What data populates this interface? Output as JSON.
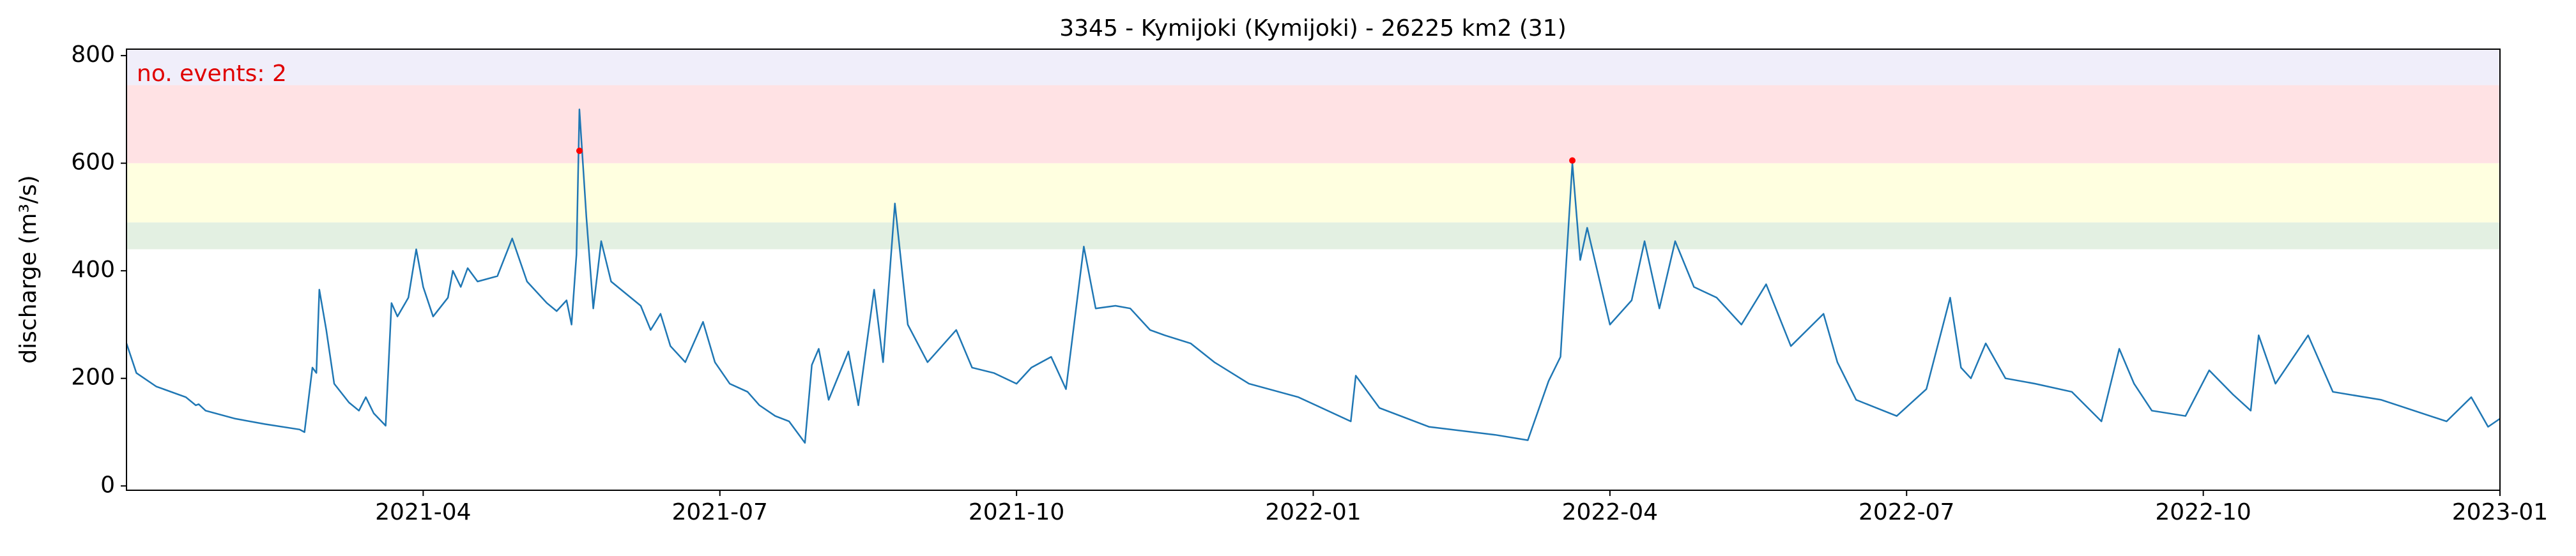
{
  "chart_data": {
    "type": "line",
    "title": "3345 - Kymijoki (Kymijoki) - 26225 km2 (31)",
    "y_label": "discharge (m³/s)",
    "annotation": "no. events: 2",
    "annotation_color": "#e00000",
    "xlim": [
      0,
      24
    ],
    "xticks": [
      {
        "value": 3,
        "label": "2021-04"
      },
      {
        "value": 6,
        "label": "2021-07"
      },
      {
        "value": 9,
        "label": "2021-10"
      },
      {
        "value": 12,
        "label": "2022-01"
      },
      {
        "value": 15,
        "label": "2022-04"
      },
      {
        "value": 18,
        "label": "2022-07"
      },
      {
        "value": 21,
        "label": "2022-10"
      },
      {
        "value": 24,
        "label": "2023-01"
      }
    ],
    "ylim": [
      -8,
      812
    ],
    "yticks": [
      0,
      200,
      400,
      600,
      800
    ],
    "band_edges": [
      440,
      490,
      600,
      745
    ],
    "band_colors": [
      "#e3f0e2",
      "#ffffe0",
      "#ffe2e4",
      "#f0eefa"
    ],
    "series": [
      {
        "color": "#1f77b4",
        "x": [
          0,
          0.1,
          0.3,
          0.6,
          0.7,
          0.73,
          0.8,
          1.1,
          1.4,
          1.75,
          1.8,
          1.88,
          1.92,
          1.95,
          2.02,
          2.1,
          2.25,
          2.35,
          2.42,
          2.5,
          2.62,
          2.68,
          2.74,
          2.85,
          2.93,
          3.0,
          3.1,
          3.25,
          3.3,
          3.38,
          3.45,
          3.55,
          3.75,
          3.9,
          4.05,
          4.25,
          4.35,
          4.45,
          4.5,
          4.55,
          4.58,
          4.65,
          4.72,
          4.8,
          4.9,
          5.2,
          5.3,
          5.4,
          5.5,
          5.65,
          5.83,
          5.95,
          6.1,
          6.28,
          6.4,
          6.56,
          6.7,
          6.86,
          6.93,
          7.0,
          7.1,
          7.3,
          7.4,
          7.56,
          7.65,
          7.77,
          7.9,
          8.1,
          8.39,
          8.55,
          8.77,
          9.0,
          9.15,
          9.35,
          9.5,
          9.68,
          9.8,
          10.0,
          10.15,
          10.35,
          10.5,
          10.76,
          11.0,
          11.35,
          11.85,
          12.38,
          12.43,
          12.67,
          13.17,
          13.84,
          14.17,
          14.38,
          14.5,
          14.62,
          14.7,
          14.77,
          15.0,
          15.22,
          15.35,
          15.5,
          15.66,
          15.85,
          16.08,
          16.33,
          16.58,
          16.83,
          17.16,
          17.3,
          17.49,
          17.9,
          18.2,
          18.44,
          18.55,
          18.65,
          18.8,
          19.0,
          19.3,
          19.67,
          19.97,
          20.15,
          20.3,
          20.48,
          20.82,
          21.06,
          21.3,
          21.48,
          21.56,
          21.73,
          22.06,
          22.31,
          22.8,
          23.46,
          23.71,
          23.88,
          24
        ],
        "values": [
          265,
          210,
          185,
          165,
          150,
          152,
          140,
          125,
          115,
          105,
          100,
          220,
          210,
          365,
          290,
          190,
          155,
          140,
          165,
          135,
          112,
          340,
          315,
          350,
          440,
          370,
          315,
          350,
          400,
          370,
          405,
          380,
          390,
          460,
          380,
          340,
          325,
          345,
          300,
          430,
          700,
          500,
          330,
          455,
          380,
          335,
          290,
          320,
          260,
          230,
          305,
          230,
          190,
          175,
          150,
          130,
          120,
          80,
          225,
          255,
          160,
          250,
          150,
          365,
          230,
          525,
          300,
          230,
          290,
          220,
          210,
          190,
          220,
          240,
          180,
          445,
          330,
          335,
          330,
          290,
          280,
          265,
          230,
          190,
          165,
          120,
          205,
          145,
          110,
          95,
          85,
          195,
          240,
          600,
          420,
          480,
          300,
          345,
          455,
          330,
          455,
          370,
          350,
          300,
          375,
          260,
          320,
          230,
          160,
          130,
          180,
          350,
          220,
          200,
          265,
          200,
          190,
          175,
          120,
          255,
          190,
          140,
          130,
          215,
          170,
          140,
          280,
          190,
          280,
          175,
          160,
          120,
          165,
          110,
          125
        ]
      },
      {
        "color": "#ff0000",
        "marker": "dot",
        "x": [
          4.58,
          14.62
        ],
        "values": [
          623,
          605
        ]
      }
    ]
  }
}
